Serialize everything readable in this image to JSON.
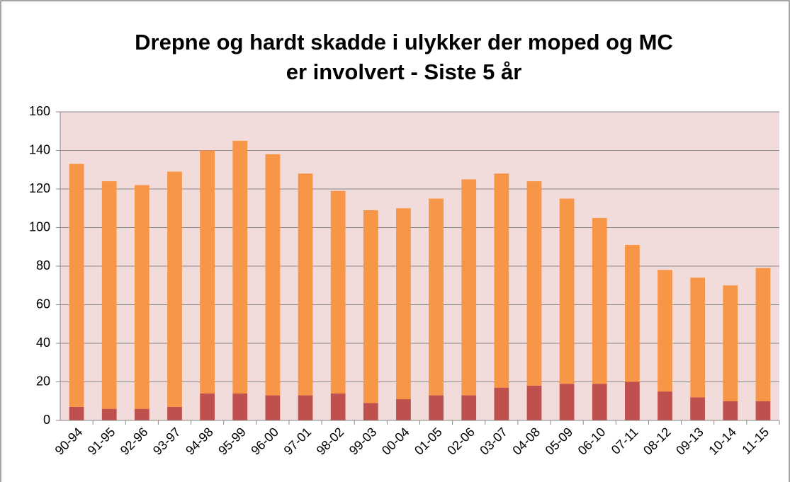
{
  "chart_data": {
    "type": "stacked_bar",
    "title": [
      "Drepne og hardt skadde i ulykker der moped og MC",
      "er involvert - Siste 5 år"
    ],
    "categories": [
      "90-94",
      "91-95",
      "92-96",
      "93-97",
      "94-98",
      "95-99",
      "96-00",
      "97-01",
      "98-02",
      "99-03",
      "00-04",
      "01-05",
      "02-06",
      "03-07",
      "04-08",
      "05-09",
      "06-10",
      "07-11",
      "08-12",
      "09-13",
      "10-14",
      "11-15"
    ],
    "series": [
      {
        "color": "#c0504d",
        "values": [
          7,
          6,
          6,
          7,
          14,
          14,
          13,
          13,
          14,
          9,
          11,
          13,
          13,
          17,
          18,
          19,
          19,
          20,
          15,
          12,
          10,
          10
        ]
      },
      {
        "color": "#f79646",
        "values": [
          126,
          118,
          116,
          122,
          126,
          131,
          125,
          115,
          105,
          100,
          99,
          102,
          112,
          111,
          106,
          96,
          86,
          71,
          63,
          62,
          60,
          69
        ]
      }
    ],
    "ylim": [
      0,
      160
    ],
    "yticks": [
      0,
      20,
      40,
      60,
      80,
      100,
      120,
      140,
      160
    ],
    "grid": true
  }
}
